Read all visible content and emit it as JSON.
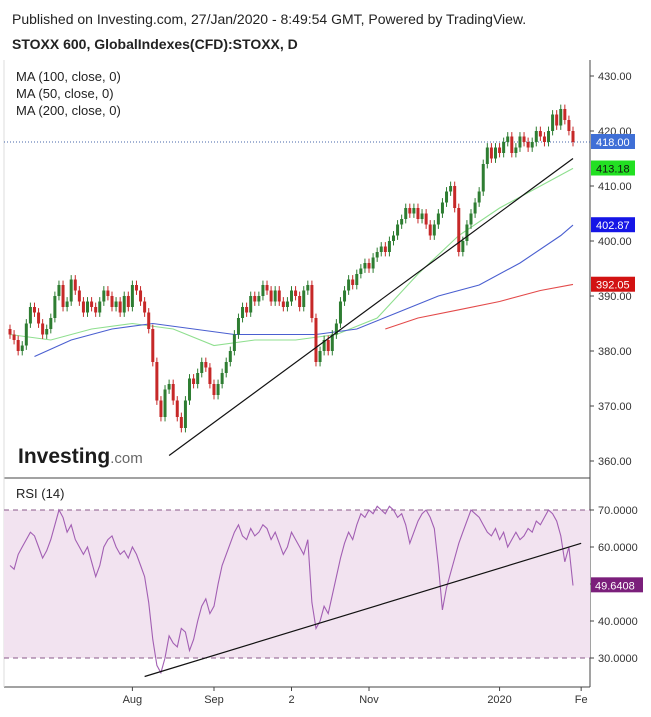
{
  "header": {
    "published": "Published on Investing.com, 27/Jan/2020 - 8:49:54 GMT, Powered by TradingView.",
    "symbol": "STOXX 600, GlobalIndexes(CFD):STOXX, D"
  },
  "legend": [
    "MA (100, close, 0)",
    "MA (50, close, 0)",
    "MA (200, close, 0)"
  ],
  "logo": {
    "main": "Investing",
    "suffix": ".com"
  },
  "colors": {
    "up": "#2e7d32",
    "down": "#c62828",
    "ma50": "#8fdf8f",
    "ma100": "#4a5fd0",
    "ma200": "#e34a4a",
    "rsi": "#a25fb3",
    "rsi_band": "#f2e3f0",
    "last_price": "#3f6fd6",
    "ma50_badge": "#22e022",
    "ma100_badge": "#1515e6",
    "ma200_badge": "#d21212",
    "rsi_badge": "#7b1f7b"
  },
  "chart_data": [
    {
      "type": "candlestick",
      "title": "STOXX 600, GlobalIndexes(CFD):STOXX, D",
      "ylim": [
        357,
        433
      ],
      "y_ticks": [
        "430.00",
        "420.00",
        "410.00",
        "400.00",
        "390.00",
        "380.00",
        "370.00",
        "360.00"
      ],
      "price_labels": [
        {
          "name": "last",
          "value": "418.00"
        },
        {
          "name": "MA (50, close, 0)",
          "value": "413.18"
        },
        {
          "name": "MA (100, close, 0)",
          "value": "402.87"
        },
        {
          "name": "MA (200, close, 0)",
          "value": "392.05"
        }
      ],
      "candles": [
        [
          384,
          383
        ],
        [
          383,
          382
        ],
        [
          382,
          380
        ],
        [
          380,
          381
        ],
        [
          381,
          385
        ],
        [
          385,
          388
        ],
        [
          388,
          387
        ],
        [
          387,
          385
        ],
        [
          385,
          383
        ],
        [
          383,
          384
        ],
        [
          384,
          386
        ],
        [
          386,
          390
        ],
        [
          390,
          392
        ],
        [
          392,
          388
        ],
        [
          388,
          389
        ],
        [
          389,
          393
        ],
        [
          393,
          391
        ],
        [
          391,
          389
        ],
        [
          389,
          387
        ],
        [
          387,
          389
        ],
        [
          389,
          388
        ],
        [
          388,
          387
        ],
        [
          387,
          389
        ],
        [
          389,
          391
        ],
        [
          391,
          390
        ],
        [
          390,
          388
        ],
        [
          388,
          389
        ],
        [
          389,
          387
        ],
        [
          387,
          390
        ],
        [
          390,
          388
        ],
        [
          388,
          392
        ],
        [
          392,
          391
        ],
        [
          391,
          389
        ],
        [
          389,
          387
        ],
        [
          387,
          384
        ],
        [
          384,
          378
        ],
        [
          378,
          371
        ],
        [
          371,
          368
        ],
        [
          368,
          373
        ],
        [
          373,
          374
        ],
        [
          374,
          371
        ],
        [
          371,
          368
        ],
        [
          368,
          366
        ],
        [
          366,
          371
        ],
        [
          371,
          375
        ],
        [
          375,
          374
        ],
        [
          374,
          376
        ],
        [
          376,
          378
        ],
        [
          378,
          377
        ],
        [
          377,
          374
        ],
        [
          374,
          372
        ],
        [
          372,
          374
        ],
        [
          374,
          376
        ],
        [
          376,
          378
        ],
        [
          378,
          380
        ],
        [
          380,
          383
        ],
        [
          383,
          386
        ],
        [
          386,
          388
        ],
        [
          388,
          387
        ],
        [
          387,
          390
        ],
        [
          390,
          389
        ],
        [
          389,
          390
        ],
        [
          390,
          392
        ],
        [
          392,
          391
        ],
        [
          391,
          389
        ],
        [
          389,
          391
        ],
        [
          391,
          389
        ],
        [
          389,
          388
        ],
        [
          388,
          389
        ],
        [
          389,
          391
        ],
        [
          391,
          390
        ],
        [
          390,
          388
        ],
        [
          388,
          391
        ],
        [
          391,
          392
        ],
        [
          392,
          386
        ],
        [
          386,
          378
        ],
        [
          378,
          380
        ],
        [
          380,
          382
        ],
        [
          382,
          380
        ],
        [
          380,
          383
        ],
        [
          383,
          385
        ],
        [
          385,
          389
        ],
        [
          389,
          391
        ],
        [
          391,
          393
        ],
        [
          393,
          392
        ],
        [
          392,
          394
        ],
        [
          394,
          395
        ],
        [
          395,
          396
        ],
        [
          396,
          395
        ],
        [
          395,
          397
        ],
        [
          397,
          398
        ],
        [
          398,
          399
        ],
        [
          399,
          398
        ],
        [
          398,
          400
        ],
        [
          400,
          401
        ],
        [
          401,
          403
        ],
        [
          403,
          404
        ],
        [
          404,
          406
        ],
        [
          406,
          405
        ],
        [
          405,
          406
        ],
        [
          406,
          404
        ],
        [
          404,
          405
        ],
        [
          405,
          403
        ],
        [
          403,
          401
        ],
        [
          401,
          403
        ],
        [
          403,
          405
        ],
        [
          405,
          407
        ],
        [
          407,
          409
        ],
        [
          409,
          410
        ],
        [
          410,
          406
        ],
        [
          406,
          398
        ],
        [
          398,
          400
        ],
        [
          400,
          403
        ],
        [
          403,
          405
        ],
        [
          405,
          407
        ],
        [
          407,
          409
        ],
        [
          409,
          414
        ],
        [
          414,
          417
        ],
        [
          417,
          415
        ],
        [
          415,
          417
        ],
        [
          417,
          416
        ],
        [
          416,
          418
        ],
        [
          418,
          419
        ],
        [
          419,
          416
        ],
        [
          416,
          417
        ],
        [
          417,
          419
        ],
        [
          419,
          418
        ],
        [
          418,
          417
        ],
        [
          417,
          418
        ],
        [
          418,
          420
        ],
        [
          420,
          419
        ],
        [
          419,
          418
        ],
        [
          418,
          420
        ],
        [
          420,
          423
        ],
        [
          423,
          421
        ],
        [
          421,
          424
        ],
        [
          424,
          422
        ],
        [
          422,
          420
        ],
        [
          420,
          418
        ]
      ],
      "series": [
        {
          "name": "MA (50, close, 0)",
          "color": "#8fdf8f",
          "x": [
            0,
            10,
            20,
            30,
            40,
            50,
            60,
            70,
            80,
            90,
            100,
            110,
            120,
            130,
            138
          ],
          "values": [
            383,
            382,
            384,
            385,
            384,
            381,
            382,
            382,
            383,
            386,
            394,
            401,
            406,
            410,
            413.2
          ]
        },
        {
          "name": "MA (100, close, 0)",
          "color": "#4a5fd0",
          "x": [
            6,
            15,
            25,
            35,
            45,
            55,
            65,
            75,
            85,
            95,
            105,
            115,
            125,
            135,
            138
          ],
          "values": [
            379,
            382,
            384,
            385,
            384,
            383,
            383,
            383,
            384,
            387,
            390,
            392,
            396,
            401,
            402.9
          ]
        },
        {
          "name": "MA (200, close, 0)",
          "color": "#e34a4a",
          "x": [
            92,
            100,
            110,
            120,
            130,
            138
          ],
          "values": [
            384,
            386,
            387.5,
            389,
            391,
            392.1
          ]
        }
      ],
      "trendline": {
        "x": [
          39,
          138
        ],
        "values": [
          361,
          415
        ]
      }
    },
    {
      "type": "line",
      "title": "RSI (14)",
      "ylim": [
        23,
        73
      ],
      "y_ticks": [
        "70.0000",
        "60.0000",
        "50.0000",
        "40.0000",
        "30.0000"
      ],
      "bands": [
        30,
        70
      ],
      "last_value": "49.6408",
      "x_labels": [
        "Aug",
        "Sep",
        "2",
        "Nov",
        "2020",
        "Fe"
      ],
      "x_label_pos": [
        30,
        50,
        69,
        88,
        120,
        140
      ],
      "values": [
        55,
        54,
        58,
        60,
        62,
        64,
        63,
        60,
        57,
        59,
        62,
        66,
        70,
        68,
        64,
        66,
        62,
        60,
        58,
        60,
        56,
        52,
        55,
        60,
        62,
        63,
        60,
        58,
        59,
        57,
        60,
        58,
        55,
        52,
        45,
        35,
        28,
        26,
        30,
        36,
        34,
        33,
        38,
        37,
        32,
        35,
        40,
        44,
        46,
        42,
        44,
        50,
        55,
        58,
        61,
        64,
        66,
        63,
        62,
        65,
        63,
        64,
        66,
        65,
        62,
        64,
        61,
        58,
        60,
        64,
        62,
        60,
        58,
        62,
        45,
        38,
        40,
        44,
        42,
        47,
        52,
        57,
        61,
        64,
        62,
        66,
        69,
        68,
        70,
        69,
        71,
        70,
        69,
        71,
        70,
        68,
        69,
        66,
        61,
        64,
        67,
        69,
        70,
        68,
        65,
        55,
        43,
        49,
        53,
        57,
        61,
        64,
        67,
        70,
        69,
        68,
        66,
        64,
        63,
        65,
        62,
        64,
        60,
        62,
        64,
        62,
        63,
        65,
        64,
        67,
        66,
        68,
        70,
        69,
        67,
        63,
        56,
        60,
        49.6
      ],
      "trendline": {
        "x": [
          33,
          140
        ],
        "values": [
          25,
          61
        ]
      }
    }
  ]
}
